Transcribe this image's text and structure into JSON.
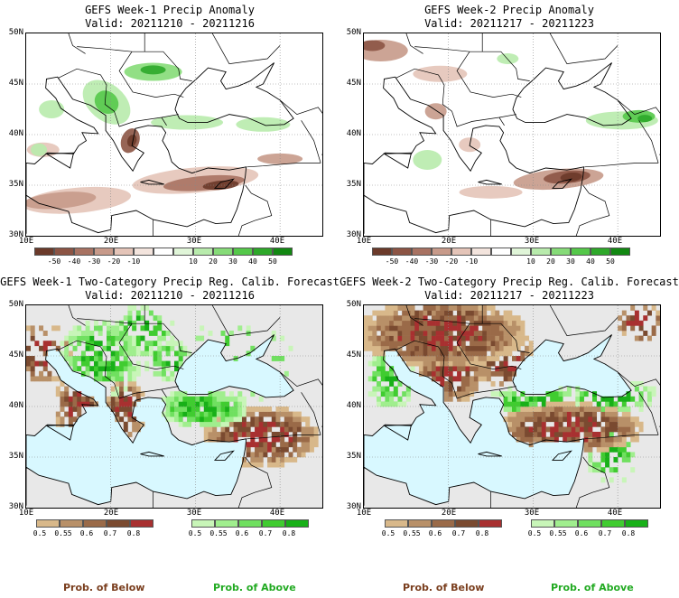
{
  "panels": [
    {
      "id": "p1",
      "title": "GEFS Week-1 Precip Anomaly",
      "valid": "Valid: 20211210 - 20211216",
      "kind": "anomaly"
    },
    {
      "id": "p2",
      "title": "GEFS Week-2 Precip Anomaly",
      "valid": "Valid: 20211217 - 20211223",
      "kind": "anomaly"
    },
    {
      "id": "p3",
      "title": "GEFS Week-1 Two-Category Precip Reg. Calib. Forecast",
      "valid": "Valid: 20211210 - 20211216",
      "kind": "prob"
    },
    {
      "id": "p4",
      "title": "GEFS Week-2 Two-Category Precip Reg. Calib. Forecast",
      "valid": "Valid: 20211217 - 20211223",
      "kind": "prob"
    }
  ],
  "axes": {
    "lat_labels": [
      "50N",
      "45N",
      "40N",
      "35N",
      "30N"
    ],
    "lon_labels": [
      "10E",
      "20E",
      "30E",
      "40E"
    ]
  },
  "anomaly_colorbar": {
    "labels": [
      "-50",
      "-40",
      "-30",
      "-20",
      "-10",
      "10",
      "20",
      "30",
      "40",
      "50"
    ],
    "colors": [
      "#6b3a2a",
      "#8c5444",
      "#a87262",
      "#c79a8a",
      "#e4c4b8",
      "#f3e4dd",
      "#ffffff",
      "#e0f5d8",
      "#b8ebac",
      "#86db78",
      "#55c84a",
      "#2ea82a",
      "#128812"
    ]
  },
  "prob_colorbar": {
    "below_labels": [
      "0.5",
      "0.55",
      "0.6",
      "0.7",
      "0.8"
    ],
    "above_labels": [
      "0.5",
      "0.55",
      "0.6",
      "0.7",
      "0.8"
    ],
    "below_colors": [
      "#d8b88a",
      "#b89068",
      "#9a6a48",
      "#7a4a30",
      "#a83030"
    ],
    "above_colors": [
      "#c8f5b8",
      "#a0ee8e",
      "#70e060",
      "#40cc30",
      "#18b018"
    ],
    "below_title": "Prob. of Below",
    "above_title": "Prob. of Above",
    "below_title_color": "#7a3e1e",
    "above_title_color": "#22aa22"
  },
  "colors": {
    "sea": "#d8f8ff",
    "land_gray": "#e8e8e8",
    "land_white": "#ffffff"
  }
}
